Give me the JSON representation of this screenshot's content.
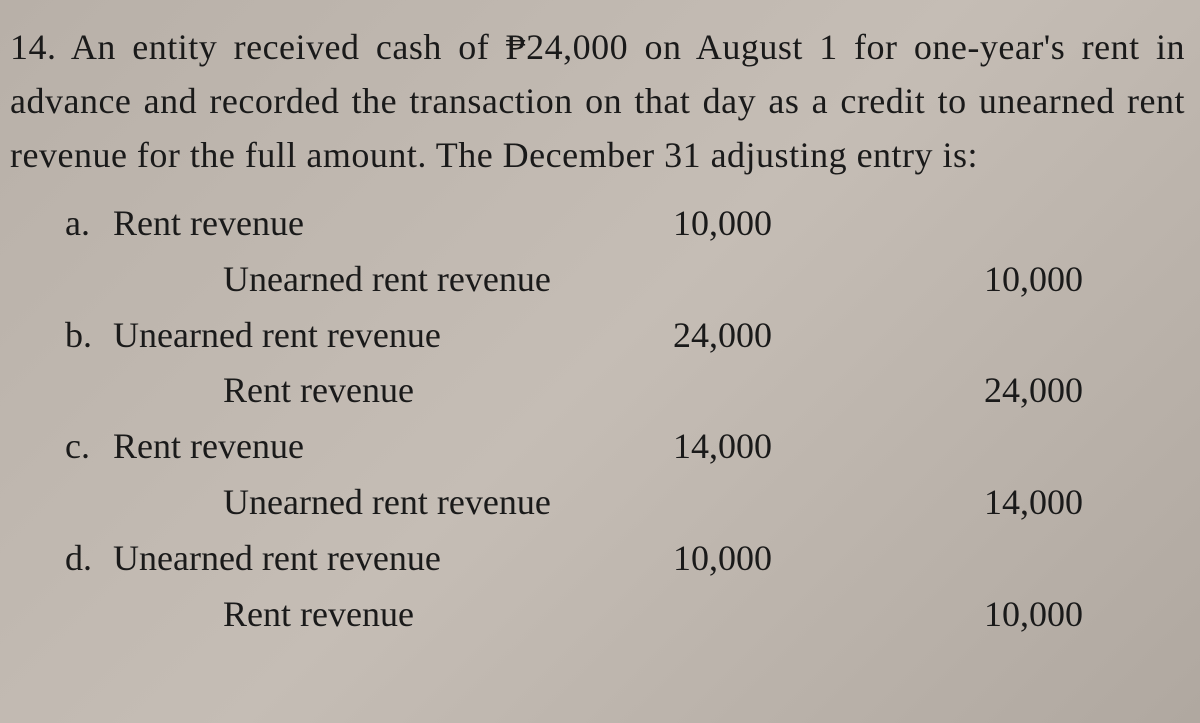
{
  "question": {
    "number": "14.",
    "text": "An entity received cash of ₱24,000 on August 1 for one-year's rent in advance and recorded the transaction on that day as a credit to unearned rent revenue for the full amount. The December 31 adjusting entry is:"
  },
  "options": [
    {
      "label": "a.",
      "debit_account": "Rent revenue",
      "debit_amount": "10,000",
      "credit_account": "Unearned rent revenue",
      "credit_amount": "10,000"
    },
    {
      "label": "b.",
      "debit_account": "Unearned rent revenue",
      "debit_amount": "24,000",
      "credit_account": "Rent revenue",
      "credit_amount": "24,000"
    },
    {
      "label": "c.",
      "debit_account": "Rent revenue",
      "debit_amount": "14,000",
      "credit_account": "Unearned rent revenue",
      "credit_amount": "14,000"
    },
    {
      "label": "d.",
      "debit_account": "Unearned rent revenue",
      "debit_amount": "10,000",
      "credit_account": "Rent revenue",
      "credit_amount": "10,000"
    }
  ],
  "styling": {
    "background_color": "#bcb4ac",
    "text_color": "#1a1a1a",
    "font_family": "Georgia, serif",
    "body_fontsize": 36,
    "line_height": 1.5
  }
}
